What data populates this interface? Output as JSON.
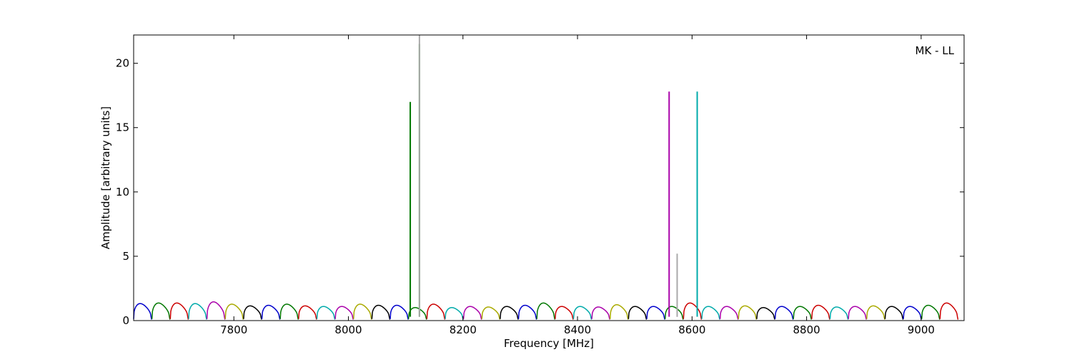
{
  "chart_data": {
    "type": "line",
    "title": "",
    "xlabel": "Frequency [MHz]",
    "ylabel": "Amplitude [arbitrary units]",
    "annotation": "MK - LL",
    "xlim": [
      7625,
      9075
    ],
    "ylim": [
      0,
      22.2
    ],
    "x_ticks": [
      7800,
      8000,
      8200,
      8400,
      8600,
      8800,
      9000
    ],
    "y_ticks": [
      0,
      5,
      10,
      15,
      20
    ],
    "grid": false,
    "legend": "none",
    "channel": {
      "start": 7625,
      "width": 32,
      "count": 45,
      "color_cycle": [
        "#0000cc",
        "#007700",
        "#cc0000",
        "#00aaaa",
        "#aa00aa",
        "#aaaa00",
        "#000000"
      ],
      "peak_amplitude": [
        1.35,
        1.4,
        1.4,
        1.35,
        1.5,
        1.3,
        1.15,
        1.2,
        1.3,
        1.15,
        1.1,
        1.1,
        1.3,
        1.2,
        1.2,
        1.0,
        1.3,
        1.0,
        1.1,
        1.05,
        1.1,
        1.2,
        1.4,
        1.1,
        1.1,
        1.05,
        1.25,
        1.1,
        1.1,
        1.1,
        1.4,
        1.1,
        1.1,
        1.15,
        1.0,
        1.1,
        1.1,
        1.2,
        1.05,
        1.1,
        1.15,
        1.1,
        1.1,
        1.2,
        1.4
      ]
    },
    "spikes": [
      {
        "x": 8108,
        "y": 17.0,
        "color": "#007700"
      },
      {
        "x": 8124,
        "y": 21.5,
        "color": "#007700"
      },
      {
        "x": 8124,
        "y": 22.2,
        "color": "#aaaaaa"
      },
      {
        "x": 8560,
        "y": 17.8,
        "color": "#aa00aa"
      },
      {
        "x": 8574,
        "y": 4.9,
        "color": "#aa00aa"
      },
      {
        "x": 8574,
        "y": 5.2,
        "color": "#aaaaaa"
      },
      {
        "x": 8609,
        "y": 17.8,
        "color": "#00aaaa"
      }
    ]
  }
}
